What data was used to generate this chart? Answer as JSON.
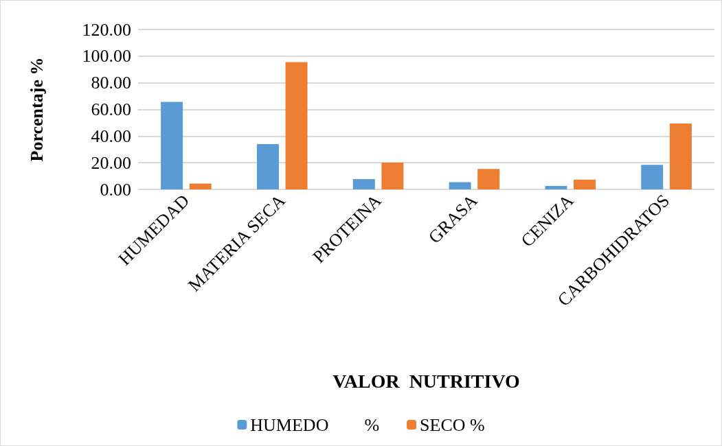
{
  "chart_data": {
    "type": "bar",
    "xlabel": "VALOR  NUTRITIVO",
    "ylabel": "Porcentaje %",
    "categories": [
      "HUMEDAD",
      "MATERIA SECA",
      "PROTEINA",
      "GRASA",
      "CENIZA",
      "CARBOHIDRATOS"
    ],
    "series": [
      {
        "name": "HUMEDO        %",
        "color": "#5b9bd5",
        "values": [
          65.7,
          34.0,
          7.7,
          5.4,
          2.6,
          18.4
        ]
      },
      {
        "name": "SECO %",
        "color": "#ed7d31",
        "values": [
          4.4,
          95.5,
          20.1,
          15.3,
          7.3,
          49.4
        ]
      }
    ],
    "ylim": [
      0,
      120
    ],
    "yticks": [
      {
        "value": 0,
        "label": "0.00"
      },
      {
        "value": 20,
        "label": "20.00"
      },
      {
        "value": 40,
        "label": "40.00"
      },
      {
        "value": 60,
        "label": "60.00"
      },
      {
        "value": 80,
        "label": "80.00"
      },
      {
        "value": 100,
        "label": "100.00"
      },
      {
        "value": 120,
        "label": "120.00"
      }
    ],
    "grid": "y",
    "legend": "bottom"
  }
}
